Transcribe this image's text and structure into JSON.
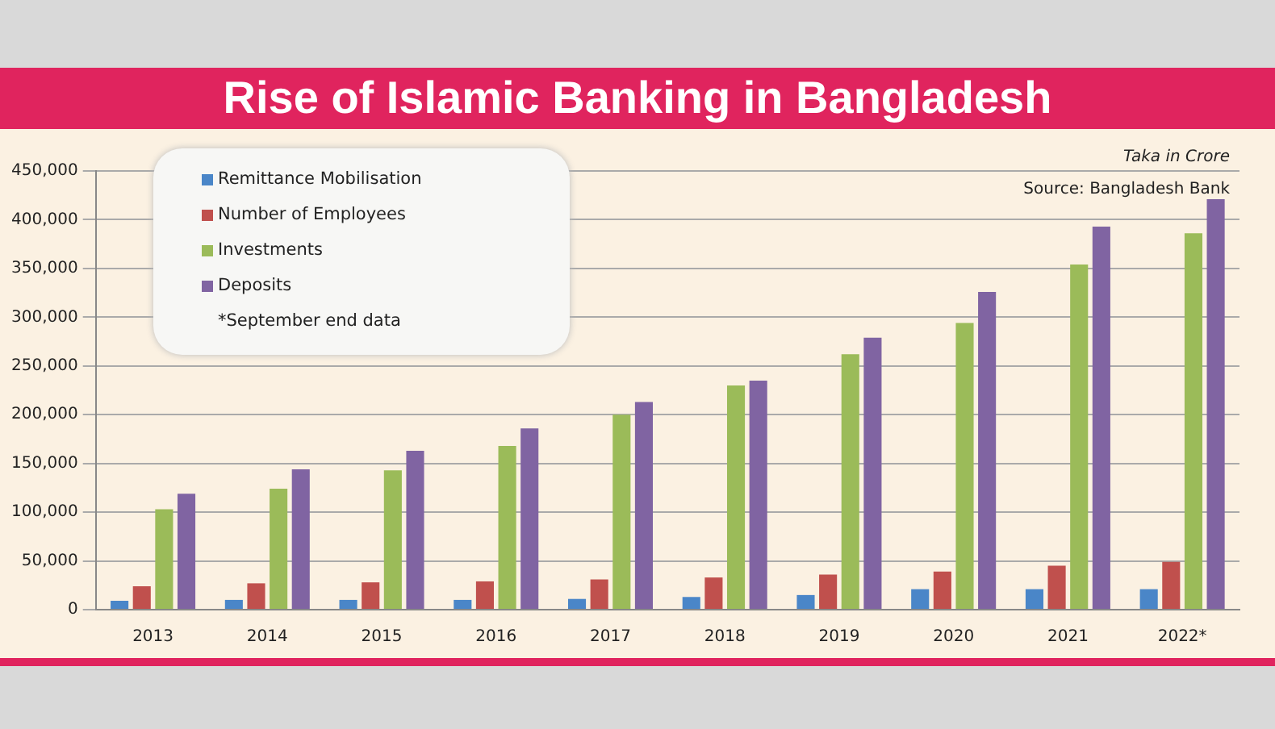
{
  "chart_data": {
    "type": "bar",
    "title": "Rise of Islamic Banking in Bangladesh",
    "categories": [
      "2013",
      "2014",
      "2015",
      "2016",
      "2017",
      "2018",
      "2019",
      "2020",
      "2021",
      "2022*"
    ],
    "series": [
      {
        "name": "Remittance Mobilisation",
        "color": "#4a86c8",
        "values": [
          9000,
          10000,
          10000,
          10000,
          11000,
          13000,
          15000,
          21000,
          21000,
          21000
        ]
      },
      {
        "name": "Number of Employees",
        "color": "#c0504d",
        "values": [
          24000,
          27000,
          28000,
          29000,
          31000,
          33000,
          36000,
          39000,
          45000,
          49000
        ]
      },
      {
        "name": "Investments",
        "color": "#9bbb59",
        "values": [
          103000,
          124000,
          143000,
          168000,
          200000,
          230000,
          262000,
          294000,
          354000,
          386000
        ]
      },
      {
        "name": "Deposits",
        "color": "#8064a2",
        "values": [
          119000,
          144000,
          163000,
          186000,
          213000,
          235000,
          279000,
          326000,
          393000,
          421000
        ]
      }
    ],
    "ylim": [
      0,
      450000
    ],
    "yticks": [
      {
        "value": 0,
        "label": "0"
      },
      {
        "value": 50000,
        "label": "50,000"
      },
      {
        "value": 100000,
        "label": "100,000"
      },
      {
        "value": 150000,
        "label": "150,000"
      },
      {
        "value": 200000,
        "label": "200,000"
      },
      {
        "value": 250000,
        "label": "250,000"
      },
      {
        "value": 300000,
        "label": "300,000"
      },
      {
        "value": 350000,
        "label": "350,000"
      },
      {
        "value": 400000,
        "label": "400,000"
      },
      {
        "value": 450000,
        "label": "450,000"
      }
    ],
    "grid": "y",
    "legend": "top left",
    "annotations": [
      "Taka in Crore",
      "Source: Bangladesh Bank",
      "*September end data"
    ]
  }
}
